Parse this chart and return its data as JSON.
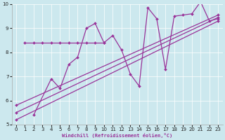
{
  "xlabel": "Windchill (Refroidissement éolien,°C)",
  "bg_color": "#cce8ee",
  "line_color": "#993399",
  "xlim": [
    -0.5,
    23.5
  ],
  "ylim": [
    5,
    10
  ],
  "yticks": [
    5,
    6,
    7,
    8,
    9,
    10
  ],
  "xticks": [
    0,
    1,
    2,
    3,
    4,
    5,
    6,
    7,
    8,
    9,
    10,
    11,
    12,
    13,
    14,
    15,
    16,
    17,
    18,
    19,
    20,
    21,
    22,
    23
  ],
  "flat_line": {
    "x": [
      1,
      2,
      3,
      4,
      5,
      6,
      7,
      8,
      9,
      10
    ],
    "y": [
      8.4,
      8.4,
      8.4,
      8.4,
      8.4,
      8.4,
      8.4,
      8.4,
      8.4,
      8.4
    ]
  },
  "zigzag_line": {
    "x": [
      2,
      4,
      5,
      6,
      7,
      8,
      9,
      10,
      11,
      12,
      13,
      14,
      15,
      16,
      17,
      18,
      19,
      20,
      21,
      22,
      23
    ],
    "y": [
      5.4,
      6.9,
      6.5,
      7.5,
      7.8,
      9.0,
      9.2,
      8.4,
      8.7,
      8.1,
      7.1,
      6.6,
      9.85,
      9.4,
      7.3,
      9.5,
      9.55,
      9.6,
      10.1,
      9.3,
      9.4
    ]
  },
  "trend_lines": [
    {
      "x": [
        0,
        23
      ],
      "y": [
        5.2,
        9.3
      ]
    },
    {
      "x": [
        0,
        23
      ],
      "y": [
        5.5,
        9.45
      ]
    },
    {
      "x": [
        0,
        23
      ],
      "y": [
        5.8,
        9.55
      ]
    }
  ]
}
